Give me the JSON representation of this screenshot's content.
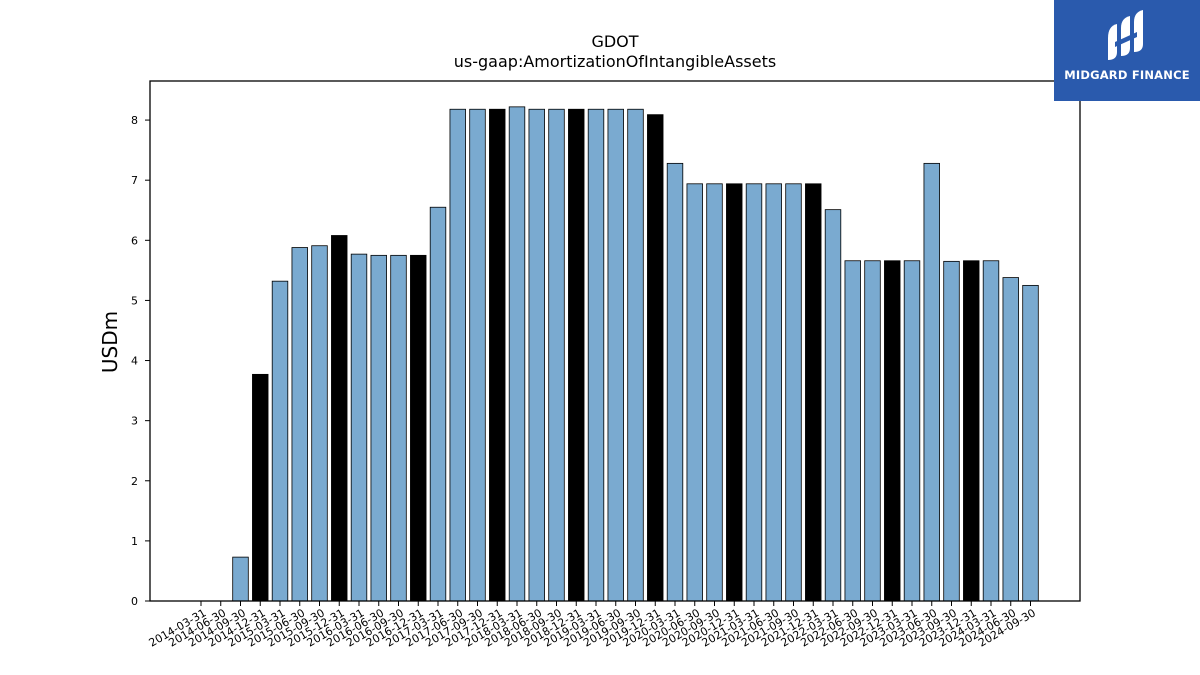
{
  "brand": {
    "name": "MIDGARD FINANCE",
    "logo_color": "#2a5aad"
  },
  "chart_data": {
    "type": "bar",
    "title": "GDOT",
    "subtitle": "us-gaap:AmortizationOfIntangibleAssets",
    "xlabel": "",
    "ylabel": "USDm",
    "ylim": [
      0,
      8.65
    ],
    "yticks": [
      0,
      1,
      2,
      3,
      4,
      5,
      6,
      7,
      8
    ],
    "grid": false,
    "colors": {
      "quarter": "#7aaad0",
      "year_end": "#000000",
      "edge": "#000000"
    },
    "categories": [
      "2014-03-31",
      "2014-06-30",
      "2014-09-30",
      "2014-12-31",
      "2015-03-31",
      "2015-06-30",
      "2015-09-30",
      "2015-12-31",
      "2016-03-31",
      "2016-06-30",
      "2016-09-30",
      "2016-12-31",
      "2017-03-31",
      "2017-06-30",
      "2017-09-30",
      "2017-12-31",
      "2018-03-31",
      "2018-06-30",
      "2018-09-30",
      "2018-12-31",
      "2019-03-31",
      "2019-06-30",
      "2019-09-30",
      "2019-12-31",
      "2020-03-31",
      "2020-06-30",
      "2020-09-30",
      "2020-12-31",
      "2021-03-31",
      "2021-06-30",
      "2021-09-30",
      "2021-12-31",
      "2022-03-31",
      "2022-06-30",
      "2022-09-30",
      "2022-12-31",
      "2023-03-31",
      "2023-06-30",
      "2023-09-30",
      "2023-12-31",
      "2024-03-31",
      "2024-06-30",
      "2024-09-30"
    ],
    "values": [
      null,
      null,
      0.73,
      3.77,
      5.32,
      5.88,
      5.91,
      6.08,
      5.77,
      5.75,
      5.75,
      5.75,
      6.55,
      8.18,
      8.18,
      8.18,
      8.22,
      8.18,
      8.18,
      8.18,
      8.18,
      8.18,
      8.18,
      8.09,
      7.28,
      6.94,
      6.94,
      6.94,
      6.94,
      6.94,
      6.94,
      6.94,
      6.51,
      5.66,
      5.66,
      5.66,
      5.66,
      7.28,
      5.65,
      5.66,
      5.66,
      5.38,
      5.25
    ],
    "highlight": [
      false,
      false,
      false,
      true,
      false,
      false,
      false,
      true,
      false,
      false,
      false,
      true,
      false,
      false,
      false,
      true,
      false,
      false,
      false,
      true,
      false,
      false,
      false,
      true,
      false,
      false,
      false,
      true,
      false,
      false,
      false,
      true,
      false,
      false,
      false,
      true,
      false,
      false,
      false,
      true,
      false,
      false,
      false
    ]
  }
}
